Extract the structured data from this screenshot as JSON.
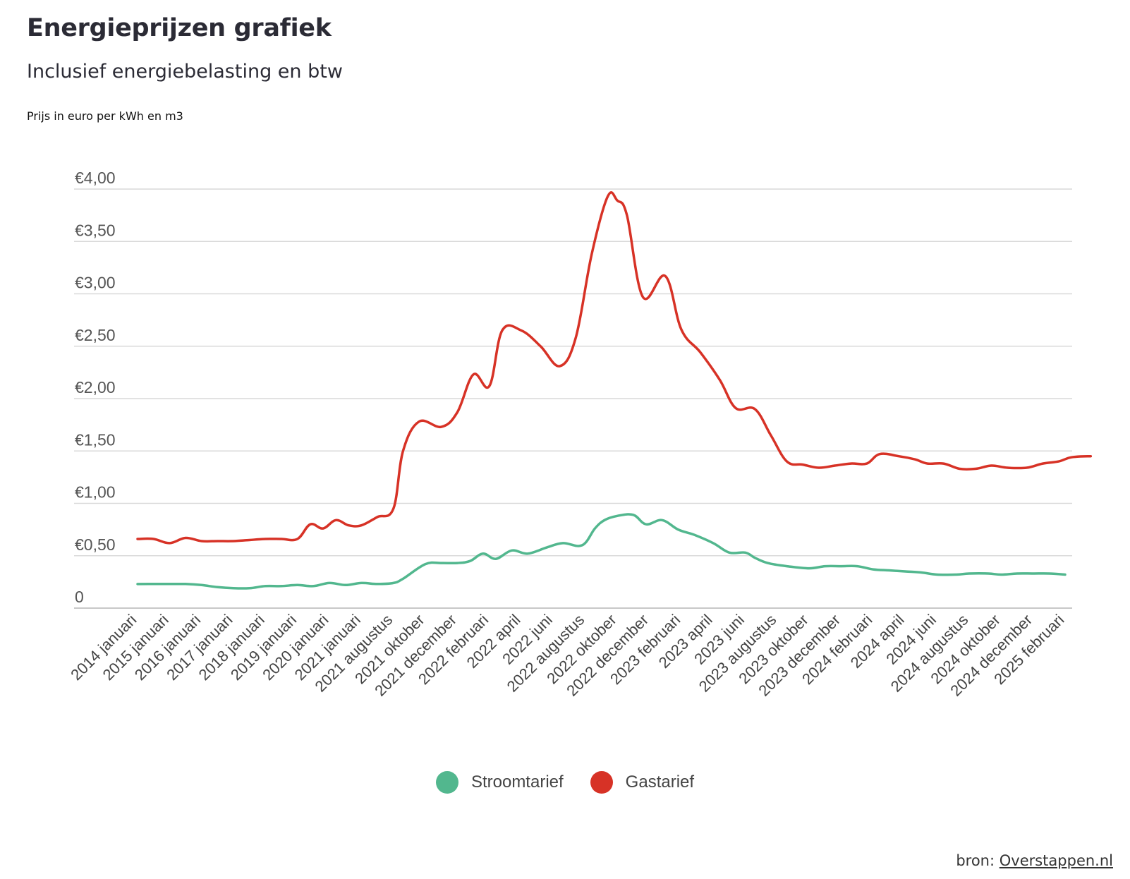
{
  "header": {
    "title": "Energieprijzen grafiek",
    "subtitle": "Inclusief energiebelasting en btw",
    "unit_note": "Prijs in euro per kWh en m3"
  },
  "source": {
    "prefix": "bron: ",
    "link_label": "Overstappen.nl"
  },
  "chart_data": {
    "type": "line",
    "y_ticks": [
      "0",
      "€0,50",
      "€1,00",
      "€1,50",
      "€2,00",
      "€2,50",
      "€3,00",
      "€3,50",
      "€4,00"
    ],
    "ylim": [
      0,
      4
    ],
    "grid": true,
    "legend_position": "bottom-center",
    "categories": [
      "2014 januari",
      "2015 januari",
      "2016 januari",
      "2017 januari",
      "2018 januari",
      "2019 januari",
      "2020 januari",
      "2021 januari",
      "2021 augustus",
      "2021 oktober",
      "2021 december",
      "2022 februari",
      "2022 april",
      "2022 juni",
      "2022 augustus",
      "2022 oktober",
      "2022 december",
      "2023 februari",
      "2023 april",
      "2023 juni",
      "2023 augustus",
      "2023 oktober",
      "2023 december",
      "2024 februari",
      "2024 april",
      "2024 juni",
      "2024 augustus",
      "2024 oktober",
      "2024 december",
      "2025 februari"
    ],
    "series": [
      {
        "name": "Stroomtarief",
        "color": "#52b78e",
        "points": [
          [
            0,
            0.23
          ],
          [
            0.5,
            0.23
          ],
          [
            1,
            0.23
          ],
          [
            1.5,
            0.23
          ],
          [
            2,
            0.22
          ],
          [
            2.5,
            0.2
          ],
          [
            3,
            0.19
          ],
          [
            3.5,
            0.19
          ],
          [
            4,
            0.21
          ],
          [
            4.5,
            0.21
          ],
          [
            5,
            0.22
          ],
          [
            5.5,
            0.21
          ],
          [
            6,
            0.24
          ],
          [
            6.5,
            0.22
          ],
          [
            7,
            0.24
          ],
          [
            7.5,
            0.23
          ],
          [
            8,
            0.24
          ],
          [
            8.3,
            0.28
          ],
          [
            9,
            0.42
          ],
          [
            9.5,
            0.43
          ],
          [
            10,
            0.43
          ],
          [
            10.4,
            0.45
          ],
          [
            10.8,
            0.52
          ],
          [
            11.2,
            0.47
          ],
          [
            11.7,
            0.55
          ],
          [
            12.2,
            0.52
          ],
          [
            12.8,
            0.58
          ],
          [
            13.3,
            0.62
          ],
          [
            13.9,
            0.6
          ],
          [
            14.3,
            0.76
          ],
          [
            14.6,
            0.84
          ],
          [
            15,
            0.88
          ],
          [
            15.5,
            0.89
          ],
          [
            15.9,
            0.8
          ],
          [
            16.4,
            0.84
          ],
          [
            16.9,
            0.75
          ],
          [
            17.4,
            0.7
          ],
          [
            18,
            0.62
          ],
          [
            18.5,
            0.53
          ],
          [
            19,
            0.53
          ],
          [
            19.3,
            0.48
          ],
          [
            19.7,
            0.43
          ],
          [
            20.3,
            0.4
          ],
          [
            21,
            0.38
          ],
          [
            21.5,
            0.4
          ],
          [
            22,
            0.4
          ],
          [
            22.5,
            0.4
          ],
          [
            23,
            0.37
          ],
          [
            23.5,
            0.36
          ],
          [
            24,
            0.35
          ],
          [
            24.5,
            0.34
          ],
          [
            25,
            0.32
          ],
          [
            25.6,
            0.32
          ],
          [
            26,
            0.33
          ],
          [
            26.6,
            0.33
          ],
          [
            27,
            0.32
          ],
          [
            27.5,
            0.33
          ],
          [
            28,
            0.33
          ],
          [
            28.5,
            0.33
          ],
          [
            29,
            0.32
          ]
        ]
      },
      {
        "name": "Gastarief",
        "color": "#d73226",
        "points": [
          [
            0,
            0.66
          ],
          [
            0.5,
            0.66
          ],
          [
            1,
            0.62
          ],
          [
            1.5,
            0.67
          ],
          [
            2,
            0.64
          ],
          [
            2.5,
            0.64
          ],
          [
            3,
            0.64
          ],
          [
            3.5,
            0.65
          ],
          [
            4,
            0.66
          ],
          [
            4.5,
            0.66
          ],
          [
            5,
            0.66
          ],
          [
            5.4,
            0.8
          ],
          [
            5.8,
            0.76
          ],
          [
            6.2,
            0.84
          ],
          [
            6.6,
            0.79
          ],
          [
            7,
            0.79
          ],
          [
            7.5,
            0.87
          ],
          [
            8,
            0.95
          ],
          [
            8.3,
            1.5
          ],
          [
            8.8,
            1.78
          ],
          [
            9.5,
            1.73
          ],
          [
            10,
            1.87
          ],
          [
            10.5,
            2.23
          ],
          [
            11,
            2.12
          ],
          [
            11.4,
            2.65
          ],
          [
            12,
            2.65
          ],
          [
            12.6,
            2.5
          ],
          [
            13.2,
            2.31
          ],
          [
            13.7,
            2.58
          ],
          [
            14.2,
            3.38
          ],
          [
            14.7,
            3.93
          ],
          [
            15,
            3.89
          ],
          [
            15.3,
            3.75
          ],
          [
            15.8,
            2.97
          ],
          [
            16.5,
            3.17
          ],
          [
            17,
            2.66
          ],
          [
            17.6,
            2.44
          ],
          [
            18.2,
            2.18
          ],
          [
            18.7,
            1.91
          ],
          [
            19.3,
            1.9
          ],
          [
            19.8,
            1.65
          ],
          [
            20.3,
            1.4
          ],
          [
            20.8,
            1.37
          ],
          [
            21.3,
            1.34
          ],
          [
            21.8,
            1.36
          ],
          [
            22.3,
            1.38
          ],
          [
            22.8,
            1.38
          ],
          [
            23.2,
            1.47
          ],
          [
            23.8,
            1.45
          ],
          [
            24.3,
            1.42
          ],
          [
            24.7,
            1.38
          ],
          [
            25.2,
            1.38
          ],
          [
            25.7,
            1.33
          ],
          [
            26.2,
            1.33
          ],
          [
            26.7,
            1.36
          ],
          [
            27.2,
            1.34
          ],
          [
            27.8,
            1.34
          ],
          [
            28.3,
            1.38
          ],
          [
            28.8,
            1.4
          ],
          [
            29.2,
            1.44
          ],
          [
            29.8,
            1.45
          ]
        ]
      }
    ]
  }
}
